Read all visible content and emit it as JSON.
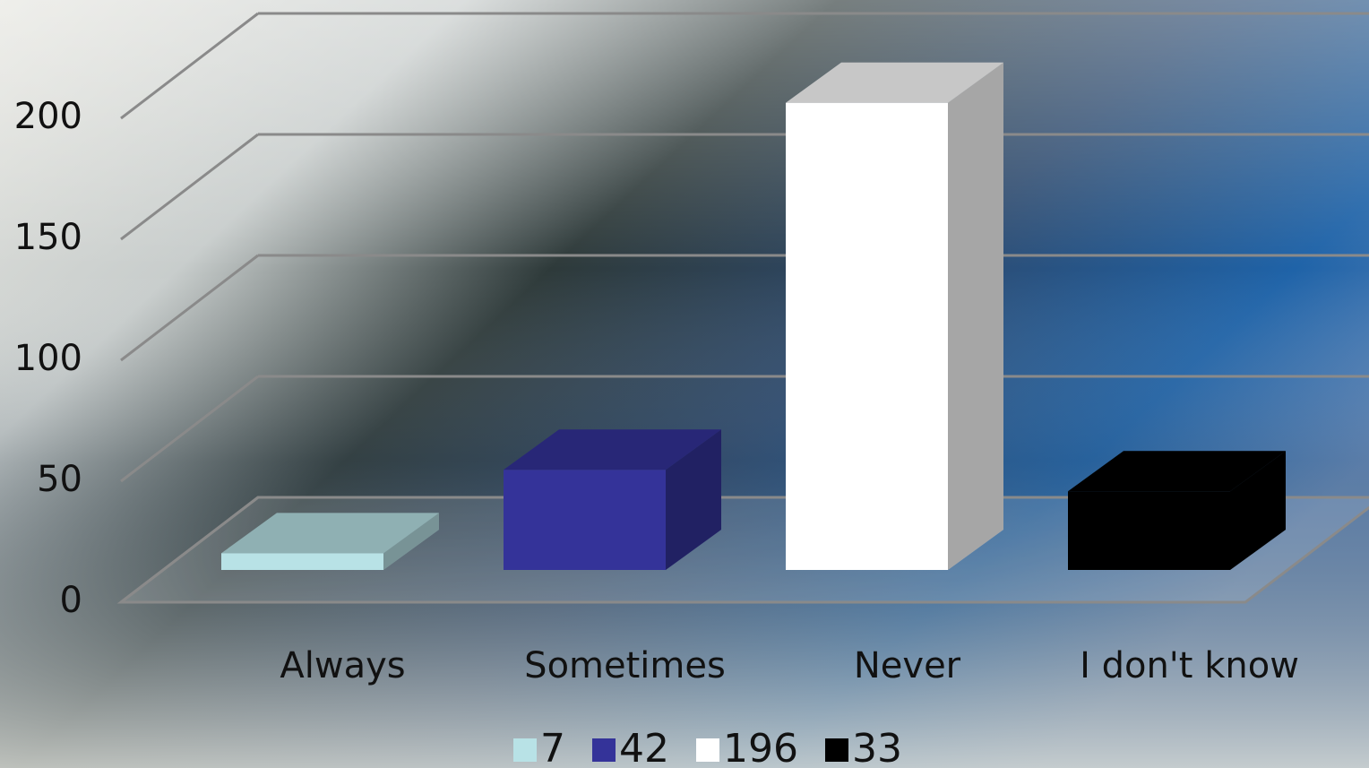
{
  "chart_data": {
    "type": "bar3d",
    "categories": [
      "Always",
      "Sometimes",
      "Never",
      "I don't know"
    ],
    "values": [
      7,
      42,
      196,
      33
    ],
    "colors": [
      "#b8e2e6",
      "#343399",
      "#ffffff",
      "#000000"
    ],
    "ylim": [
      0,
      200
    ],
    "yticks": [
      0,
      50,
      100,
      150,
      200
    ],
    "grid": true,
    "legend": "bottom"
  }
}
